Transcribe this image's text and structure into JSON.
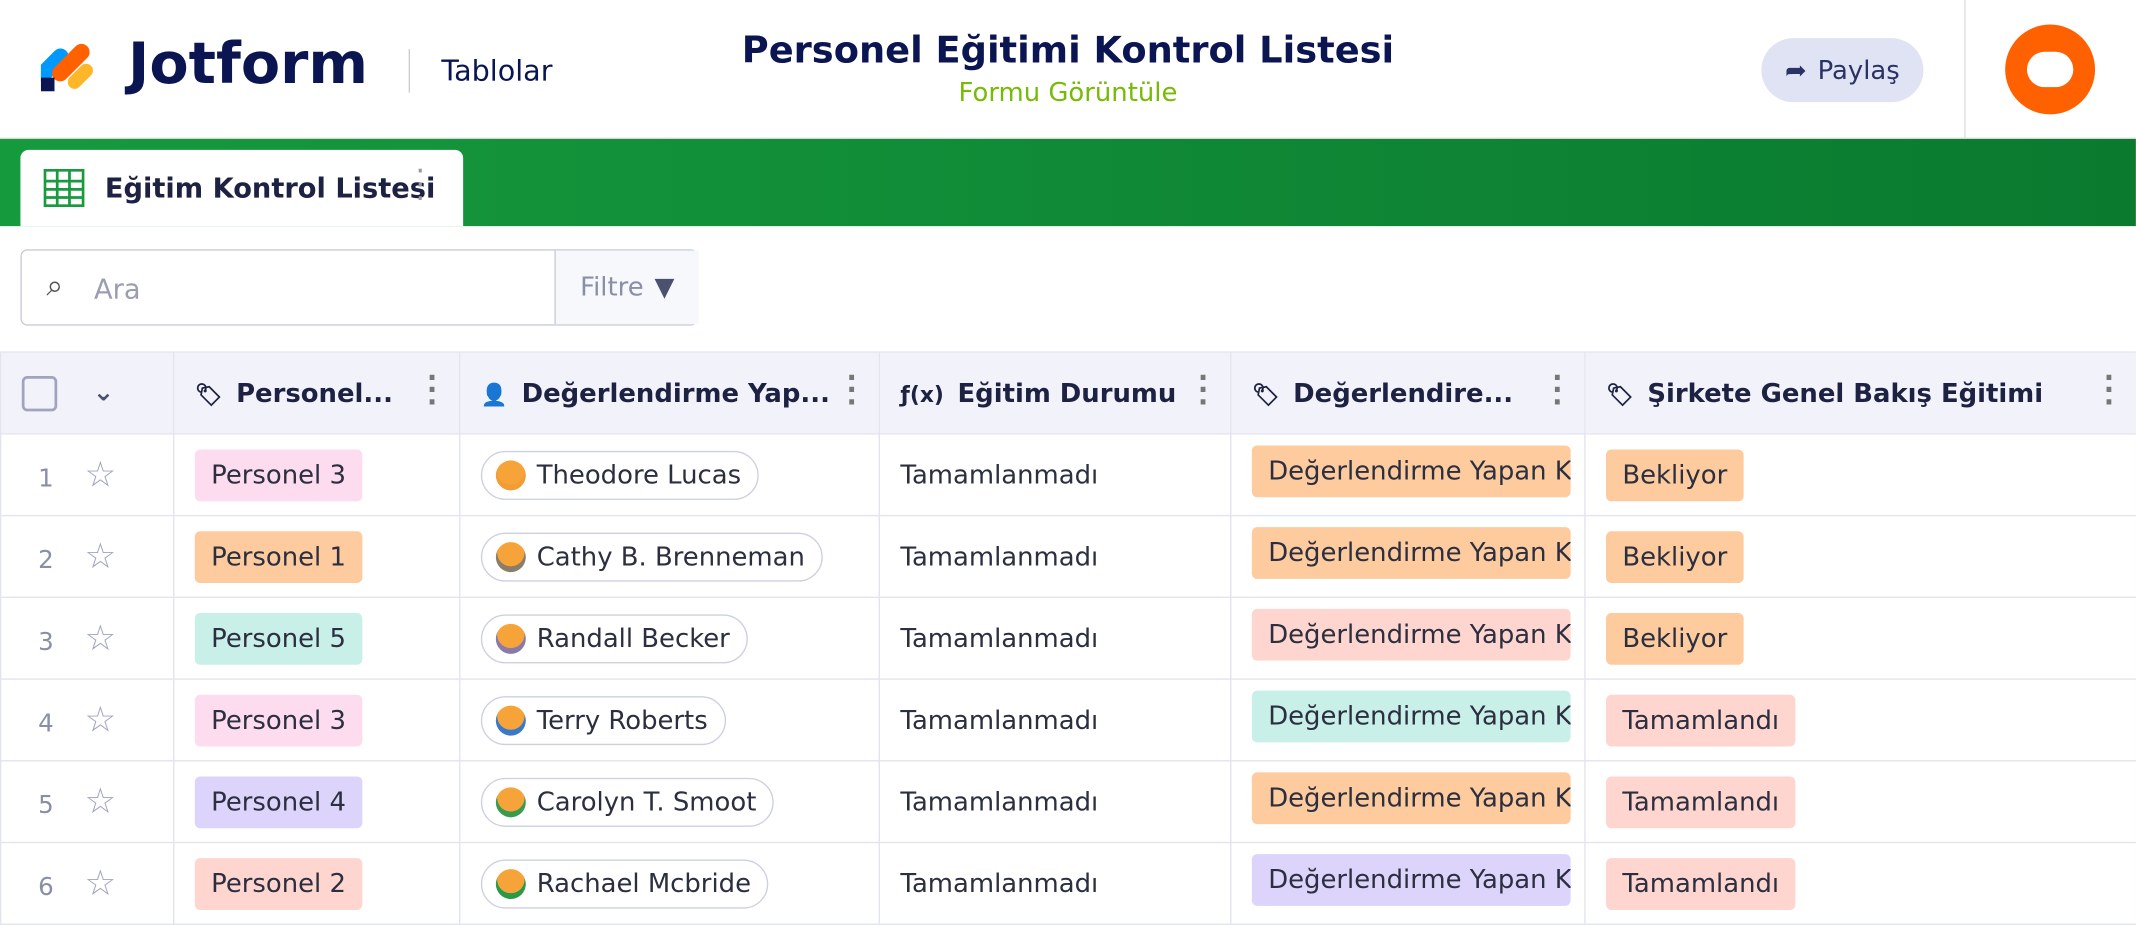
{
  "header": {
    "logo": "Jotform",
    "section": "Tablolar",
    "title": "Personel Eğitimi Kontrol Listesi",
    "subtitle": "Formu Görüntüle",
    "share": "Paylaş"
  },
  "tab": {
    "label": "Eğitim Kontrol Listesi"
  },
  "search": {
    "placeholder": "Ara",
    "filter": "Filtre"
  },
  "table": {
    "columns": [
      "Personel...",
      "Değerlendirme Yap...",
      "Eğitim Durumu",
      "Değerlendire...",
      "Şirkete Genel Bakış Eğitimi"
    ],
    "rows": [
      [
        1,
        "Personel 3",
        "Theodore Lucas",
        "Tamamlanmadı",
        "Değerlendirme Yapan K",
        "Bekliyor"
      ],
      [
        2,
        "Personel 1",
        "Cathy B. Brenneman",
        "Tamamlanmadı",
        "Değerlendirme Yapan K",
        "Bekliyor"
      ],
      [
        3,
        "Personel 5",
        "Randall Becker",
        "Tamamlanmadı",
        "Değerlendirme Yapan K",
        "Bekliyor"
      ],
      [
        4,
        "Personel 3",
        "Terry Roberts",
        "Tamamlanmadı",
        "Değerlendirme Yapan K",
        "Tamamlandı"
      ],
      [
        5,
        "Personel 4",
        "Carolyn T. Smoot",
        "Tamamlanmadı",
        "Değerlendirme Yapan K",
        "Tamamlandı"
      ],
      [
        6,
        "Personel 2",
        "Rachael Mcbride",
        "Tamamlanmadı",
        "Değerlendirme Yapan K",
        "Tamamlandı"
      ]
    ]
  }
}
